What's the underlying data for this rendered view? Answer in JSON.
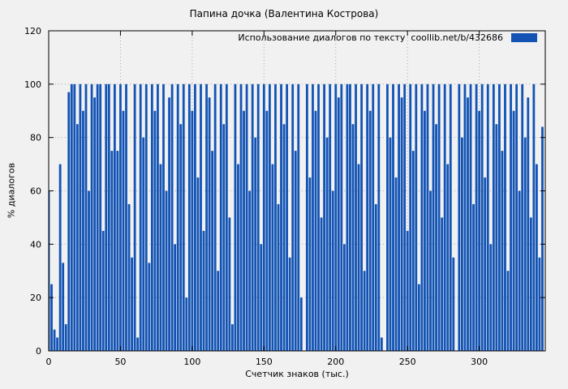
{
  "chart_data": {
    "type": "bar",
    "title": "Папина дочка (Валентина Кострова)",
    "legend_label": "Использование диалогов по тексту  coollib.net/b/432686",
    "xlabel": "Счетчик знаков (тыс.)",
    "ylabel": "% диалогов",
    "xlim": [
      0,
      346
    ],
    "ylim": [
      0,
      120
    ],
    "xticks": [
      0,
      50,
      100,
      150,
      200,
      250,
      300
    ],
    "yticks": [
      0,
      20,
      40,
      60,
      80,
      100,
      120
    ],
    "grid": true,
    "legend_position": "top-right-inside",
    "series_color": "#1253b4",
    "grid_color": "#a8a8a8",
    "x_start": 0,
    "x_step": 2,
    "values": [
      60,
      25,
      8,
      5,
      70,
      33,
      10,
      97,
      100,
      100,
      85,
      100,
      90,
      100,
      60,
      100,
      95,
      100,
      100,
      45,
      100,
      100,
      75,
      100,
      75,
      100,
      90,
      100,
      55,
      35,
      100,
      5,
      100,
      80,
      100,
      33,
      100,
      90,
      100,
      70,
      100,
      60,
      95,
      100,
      40,
      100,
      85,
      100,
      20,
      100,
      90,
      100,
      65,
      100,
      45,
      100,
      95,
      75,
      100,
      30,
      100,
      85,
      100,
      50,
      10,
      100,
      70,
      100,
      90,
      100,
      60,
      100,
      80,
      100,
      40,
      100,
      90,
      100,
      70,
      100,
      55,
      100,
      85,
      100,
      35,
      100,
      75,
      100,
      20,
      0,
      100,
      65,
      100,
      90,
      100,
      50,
      100,
      80,
      100,
      60,
      100,
      95,
      100,
      40,
      100,
      100,
      85,
      100,
      70,
      100,
      30,
      100,
      90,
      100,
      55,
      100,
      5,
      0,
      100,
      80,
      100,
      65,
      100,
      95,
      100,
      45,
      100,
      75,
      100,
      25,
      100,
      90,
      100,
      60,
      100,
      85,
      100,
      50,
      100,
      70,
      100,
      35,
      0,
      100,
      80,
      100,
      95,
      100,
      55,
      100,
      90,
      100,
      65,
      100,
      40,
      100,
      85,
      100,
      75,
      100,
      30,
      100,
      90,
      100,
      60,
      100,
      80,
      95,
      50,
      100,
      70,
      35,
      84
    ]
  }
}
